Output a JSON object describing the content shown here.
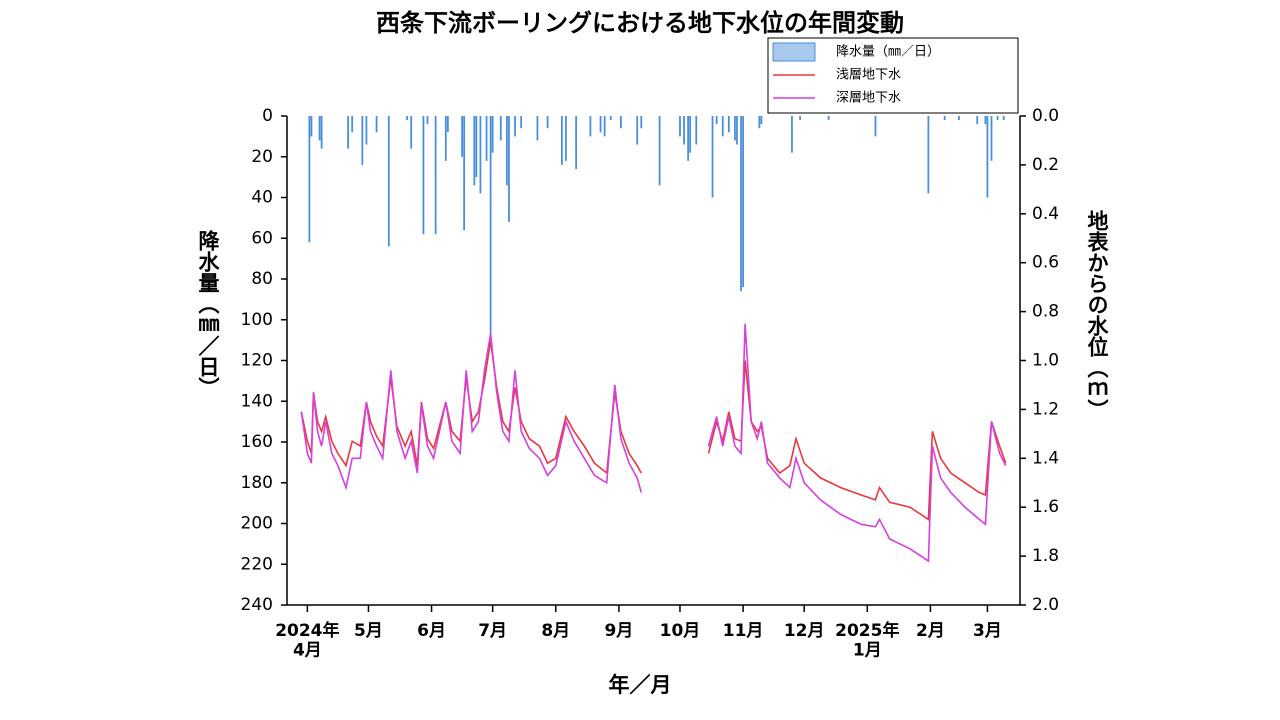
{
  "chart_data": {
    "type": "combo",
    "title": "西条下流ボーリングにおける地下水位の年間変動",
    "x_label": "年／月",
    "y_label": "降水量（㎜／日）",
    "y2_label": "地表からの水位（ｍ）",
    "xlim": [
      -10,
      350
    ],
    "xticks": [
      {
        "value": 0,
        "label": "2024年\n4月"
      },
      {
        "value": 30,
        "label": "5月"
      },
      {
        "value": 61,
        "label": "6月"
      },
      {
        "value": 91,
        "label": "7月"
      },
      {
        "value": 122,
        "label": "8月"
      },
      {
        "value": 153,
        "label": "9月"
      },
      {
        "value": 183,
        "label": "10月"
      },
      {
        "value": 214,
        "label": "11月"
      },
      {
        "value": 244,
        "label": "12月"
      },
      {
        "value": 275,
        "label": "2025年\n1月"
      },
      {
        "value": 306,
        "label": "2月"
      },
      {
        "value": 334,
        "label": "3月"
      }
    ],
    "ylim": [
      0,
      240
    ],
    "y_inverted": true,
    "yticks": [
      0,
      20,
      40,
      60,
      80,
      100,
      120,
      140,
      160,
      180,
      200,
      220,
      240
    ],
    "y2lim": [
      0,
      2
    ],
    "y2_inverted": true,
    "y2ticks": [
      {
        "value": 0,
        "label": "0.0"
      },
      0.2,
      0.4,
      0.6,
      0.8,
      {
        "value": 1,
        "label": "1.0"
      },
      1.2,
      1.4,
      1.6,
      1.8,
      {
        "value": 2,
        "label": "2.0"
      }
    ],
    "legend": "upper right",
    "series": [
      {
        "name": "降水量（㎜／日）",
        "type": "bar",
        "color": "#4a8fdc",
        "legend_fill": "#a9c8ee",
        "x": [
          1,
          2,
          6,
          7,
          20,
          22,
          27,
          29,
          34,
          40,
          49,
          51,
          57,
          59,
          63,
          68,
          69,
          76,
          77,
          82,
          83,
          85,
          88,
          90,
          91,
          95,
          98,
          99,
          102,
          105,
          113,
          118,
          125,
          127,
          132,
          139,
          144,
          146,
          149,
          154,
          162,
          164,
          173,
          183,
          185,
          187,
          188,
          191,
          199,
          201,
          204,
          207,
          210,
          211,
          213,
          214,
          222,
          223,
          238,
          242,
          256,
          279,
          305,
          313,
          320,
          329,
          333,
          334,
          336,
          339,
          342
        ],
        "values": [
          62,
          10,
          12,
          16,
          16,
          8,
          24,
          14,
          8,
          64,
          2,
          16,
          58,
          4,
          58,
          22,
          8,
          20,
          56,
          34,
          30,
          38,
          22,
          108,
          18,
          12,
          34,
          52,
          10,
          6,
          12,
          6,
          24,
          22,
          26,
          10,
          8,
          10,
          2,
          6,
          14,
          6,
          34,
          10,
          14,
          22,
          18,
          14,
          40,
          4,
          10,
          8,
          12,
          14,
          86,
          84,
          6,
          4,
          18,
          2,
          2,
          10,
          38,
          2,
          2,
          4,
          4,
          40,
          22,
          2,
          2
        ]
      },
      {
        "name": "浅層地下水",
        "type": "line",
        "axis": "y2",
        "color": "#e8383d",
        "x": [
          -3,
          0,
          2,
          3,
          5,
          7,
          9,
          12,
          15,
          19,
          22,
          26,
          29,
          31,
          34,
          37,
          41,
          44,
          48,
          51,
          54,
          56,
          59,
          62,
          68,
          71,
          75,
          78,
          81,
          84,
          87,
          90,
          93,
          96,
          99,
          102,
          105,
          109,
          114,
          118,
          122,
          127,
          131,
          136,
          141,
          147,
          151,
          154,
          158,
          162,
          164,
          180,
          197,
          201,
          204,
          207,
          210,
          213,
          215,
          218,
          221,
          223,
          226,
          232,
          237,
          240,
          244,
          252,
          262,
          272,
          279,
          281,
          286,
          296,
          305,
          307,
          311,
          316,
          323,
          330,
          333,
          336,
          340,
          343
        ],
        "values": [
          1.21,
          1.33,
          1.38,
          1.13,
          1.25,
          1.29,
          1.23,
          1.33,
          1.38,
          1.43,
          1.33,
          1.35,
          1.17,
          1.25,
          1.31,
          1.35,
          1.07,
          1.27,
          1.35,
          1.29,
          1.43,
          1.17,
          1.32,
          1.36,
          1.17,
          1.29,
          1.33,
          1.07,
          1.25,
          1.21,
          1.08,
          0.92,
          1.11,
          1.25,
          1.29,
          1.11,
          1.25,
          1.32,
          1.35,
          1.42,
          1.4,
          1.23,
          1.29,
          1.35,
          1.42,
          1.46,
          1.13,
          1.29,
          1.38,
          1.43,
          1.46,
          null,
          1.38,
          1.25,
          1.33,
          1.21,
          1.32,
          1.33,
          1.0,
          1.25,
          1.29,
          1.27,
          1.4,
          1.46,
          1.43,
          1.32,
          1.42,
          1.48,
          1.52,
          1.55,
          1.57,
          1.52,
          1.58,
          1.6,
          1.65,
          1.29,
          1.4,
          1.46,
          1.5,
          1.54,
          1.55,
          1.25,
          1.35,
          1.42
        ]
      },
      {
        "name": "深層地下水",
        "type": "line",
        "axis": "y2",
        "color": "#d63fe0",
        "x": [
          -3,
          0,
          2,
          3,
          5,
          7,
          9,
          12,
          15,
          19,
          22,
          26,
          29,
          31,
          34,
          37,
          41,
          44,
          48,
          51,
          54,
          56,
          59,
          62,
          68,
          71,
          75,
          78,
          81,
          84,
          87,
          90,
          93,
          96,
          99,
          102,
          105,
          109,
          114,
          118,
          122,
          127,
          131,
          136,
          141,
          147,
          151,
          154,
          158,
          162,
          164,
          180,
          197,
          201,
          204,
          207,
          210,
          213,
          215,
          218,
          221,
          223,
          226,
          232,
          237,
          240,
          244,
          252,
          262,
          272,
          279,
          281,
          286,
          296,
          305,
          307,
          311,
          316,
          323,
          330,
          333,
          336,
          340,
          343
        ],
        "values": [
          1.21,
          1.38,
          1.42,
          1.13,
          1.29,
          1.35,
          1.25,
          1.38,
          1.43,
          1.52,
          1.4,
          1.4,
          1.17,
          1.29,
          1.35,
          1.4,
          1.04,
          1.29,
          1.4,
          1.33,
          1.46,
          1.18,
          1.35,
          1.4,
          1.17,
          1.33,
          1.38,
          1.04,
          1.29,
          1.25,
          1.04,
          0.89,
          1.13,
          1.29,
          1.33,
          1.04,
          1.29,
          1.36,
          1.4,
          1.47,
          1.43,
          1.25,
          1.33,
          1.4,
          1.47,
          1.5,
          1.1,
          1.32,
          1.42,
          1.48,
          1.54,
          null,
          1.35,
          1.23,
          1.35,
          1.23,
          1.35,
          1.38,
          0.85,
          1.25,
          1.32,
          1.25,
          1.42,
          1.48,
          1.52,
          1.4,
          1.5,
          1.57,
          1.63,
          1.67,
          1.68,
          1.65,
          1.73,
          1.77,
          1.82,
          1.35,
          1.48,
          1.54,
          1.6,
          1.65,
          1.67,
          1.25,
          1.38,
          1.43
        ]
      }
    ]
  }
}
